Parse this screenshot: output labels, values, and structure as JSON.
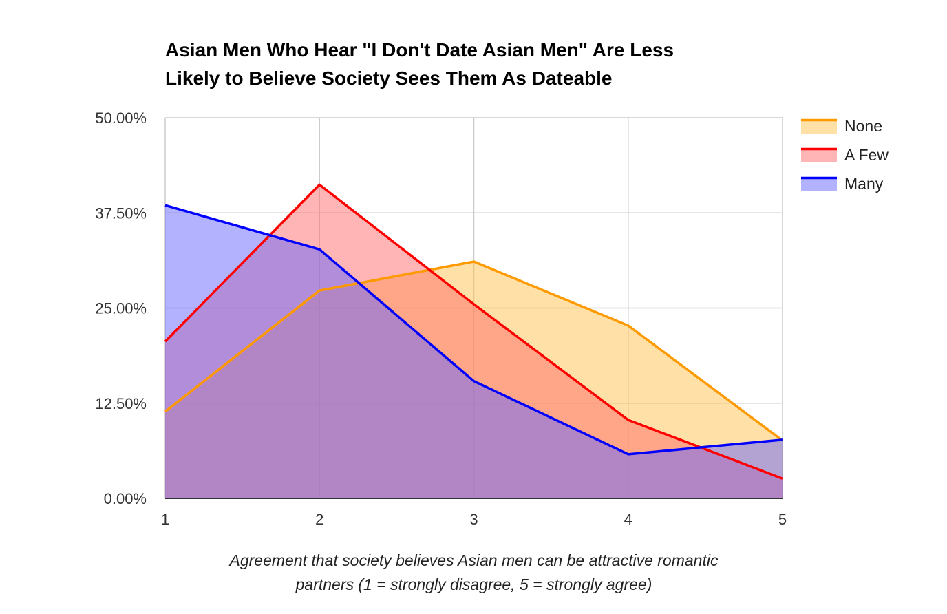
{
  "chart_data": {
    "type": "area",
    "title": "Asian Men Who Hear \"I Don't Date Asian Men\" Are Less Likely to Believe Society Sees Them As Dateable",
    "title_lines": [
      "Asian Men Who Hear \"I Don't Date Asian Men\" Are Less",
      "Likely to Believe Society Sees Them As Dateable"
    ],
    "xlabel": "Agreement that society believes Asian men can be attractive romantic partners (1 = strongly disagree, 5 = strongly agree)",
    "xlabel_lines": [
      "Agreement that society believes Asian men can be attractive romantic",
      "partners (1 = strongly disagree, 5 = strongly agree)"
    ],
    "ylabel": "",
    "x": [
      1,
      2,
      3,
      4,
      5
    ],
    "x_tick_labels": [
      "1",
      "2",
      "3",
      "4",
      "5"
    ],
    "ylim": [
      0,
      50
    ],
    "y_ticks": [
      0,
      12.5,
      25,
      37.5,
      50
    ],
    "y_tick_labels": [
      "0.00%",
      "12.50%",
      "25.00%",
      "37.50%",
      "50.00%"
    ],
    "grid": true,
    "legend_position": "right",
    "series": [
      {
        "name": "None",
        "color": "#FF9900",
        "fill": "#FFC24D",
        "values": [
          11.4,
          27.3,
          31.1,
          22.7,
          7.6
        ]
      },
      {
        "name": "A Few",
        "color": "#FF0000",
        "fill": "#FF6B6B",
        "values": [
          20.6,
          41.2,
          25.5,
          10.3,
          2.6
        ]
      },
      {
        "name": "Many",
        "color": "#0000FF",
        "fill": "#6666FF",
        "values": [
          38.5,
          32.7,
          15.4,
          5.8,
          7.7
        ]
      }
    ]
  }
}
